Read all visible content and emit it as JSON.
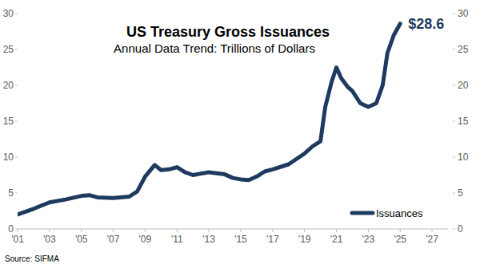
{
  "chart_data": {
    "type": "line",
    "title": "US Treasury Gross Issuances",
    "subtitle": "Annual Data Trend: Trillions of Dollars",
    "annotation": "$28.6",
    "source": "Source:  SIFMA",
    "x": [
      2001,
      2002,
      2003,
      2004,
      2005,
      2005.5,
      2006,
      2007,
      2008,
      2008.5,
      2009,
      2009.6,
      2010,
      2010.5,
      2011,
      2011.5,
      2012,
      2013,
      2014,
      2014.5,
      2015,
      2015.5,
      2016,
      2016.5,
      2017,
      2018,
      2019,
      2019.5,
      2020,
      2020.3,
      2020.7,
      2021,
      2021.3,
      2021.7,
      2022,
      2022.5,
      2023,
      2023.5,
      2023.9,
      2024.2,
      2024.6,
      2024.9,
      2025.0
    ],
    "series": [
      {
        "name": "Issuances",
        "color": "#1f3a5f",
        "values": [
          2.0,
          2.8,
          3.7,
          4.1,
          4.6,
          4.7,
          4.4,
          4.3,
          4.5,
          5.2,
          7.3,
          8.9,
          8.2,
          8.3,
          8.6,
          7.9,
          7.5,
          7.9,
          7.6,
          7.1,
          6.9,
          6.8,
          7.3,
          8.0,
          8.3,
          9.0,
          10.5,
          11.5,
          12.2,
          17.0,
          20.5,
          22.5,
          21.0,
          19.8,
          19.2,
          17.5,
          17.0,
          17.5,
          20.0,
          24.5,
          27.0,
          28.2,
          28.6
        ]
      }
    ],
    "xlim": [
      2001,
      2028
    ],
    "xticks": [
      {
        "value": 2001,
        "label": "'01"
      },
      {
        "value": 2003,
        "label": "'03"
      },
      {
        "value": 2005,
        "label": "'05"
      },
      {
        "value": 2007,
        "label": "'07"
      },
      {
        "value": 2009,
        "label": "'09"
      },
      {
        "value": 2011,
        "label": "'11"
      },
      {
        "value": 2013,
        "label": "'13"
      },
      {
        "value": 2015,
        "label": "'15"
      },
      {
        "value": 2017,
        "label": "'17"
      },
      {
        "value": 2019,
        "label": "'19"
      },
      {
        "value": 2021,
        "label": "'21"
      },
      {
        "value": 2023,
        "label": "'23"
      },
      {
        "value": 2025,
        "label": "'25"
      },
      {
        "value": 2027,
        "label": "'27"
      }
    ],
    "ylim": [
      0,
      30
    ],
    "yticks": [
      0,
      5,
      10,
      15,
      20,
      25,
      30
    ],
    "y2lim": [
      0,
      30
    ],
    "y2ticks": [
      0,
      5,
      10,
      15,
      20,
      25,
      30
    ],
    "grid": false,
    "legend": "lower right"
  }
}
